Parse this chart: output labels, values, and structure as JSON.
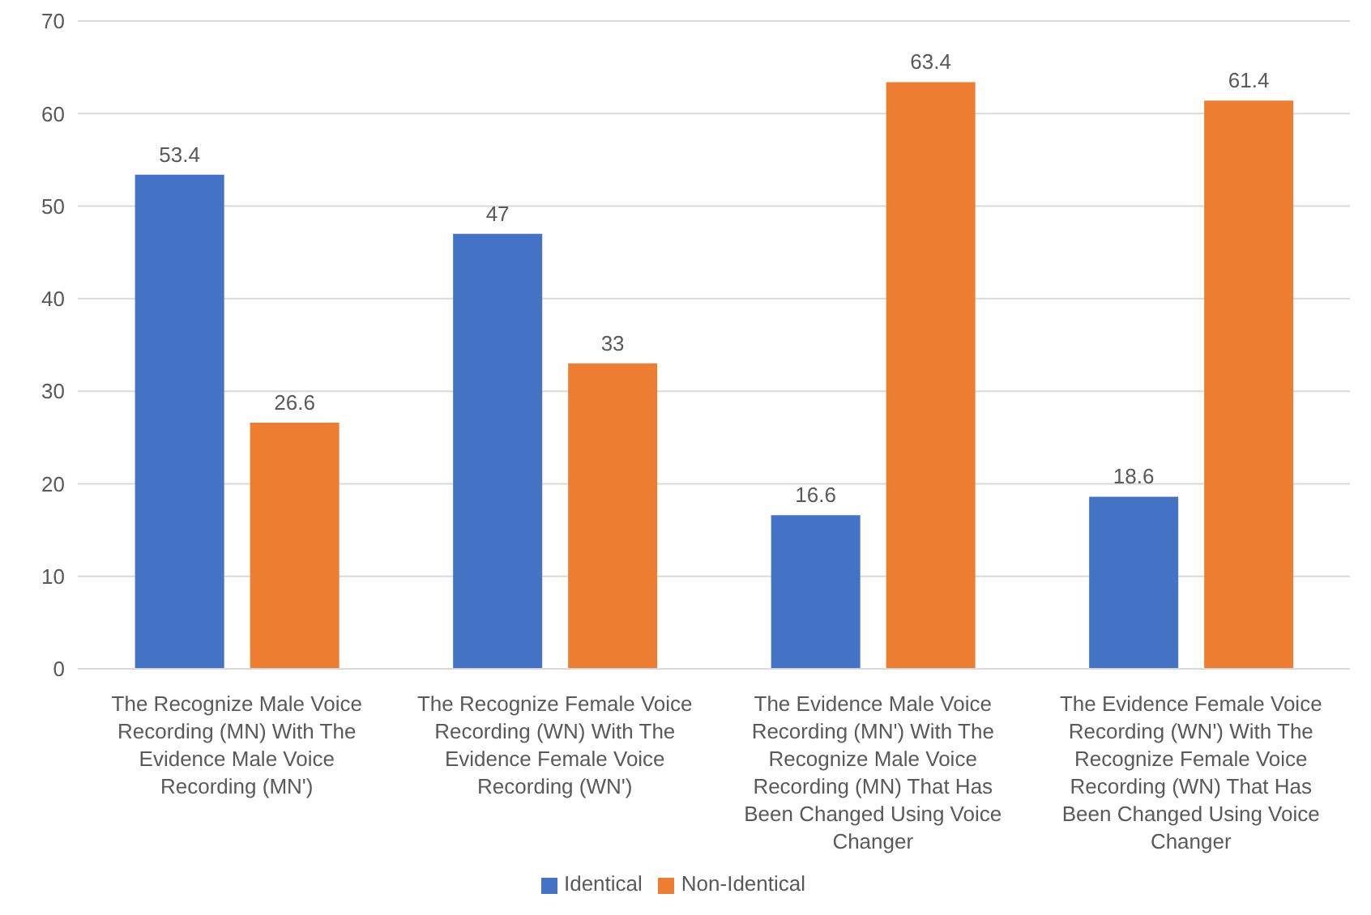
{
  "chart_data": {
    "type": "bar",
    "categories": [
      "The Recognize Male Voice Recording (MN) With The Evidence Male Voice Recording (MN')",
      "The Recognize Female Voice Recording (WN) With The Evidence Female Voice Recording (WN')",
      "The Evidence Male Voice Recording (MN') With The Recognize Male Voice Recording (MN) That Has Been Changed Using Voice Changer",
      "The Evidence Female Voice Recording (WN') With The Recognize Female Voice Recording (WN) That Has Been Changed Using Voice Changer"
    ],
    "series": [
      {
        "name": "Identical",
        "color": "#4472c4",
        "values": [
          53.4,
          47,
          16.6,
          18.6
        ]
      },
      {
        "name": "Non-Identical",
        "color": "#ed7d31",
        "values": [
          26.6,
          33,
          63.4,
          61.4
        ]
      }
    ],
    "ylim": [
      0,
      70
    ],
    "yticks": [
      0,
      10,
      20,
      30,
      40,
      50,
      60,
      70
    ],
    "grid": "y",
    "legend": "bottom",
    "data_labels": true
  }
}
